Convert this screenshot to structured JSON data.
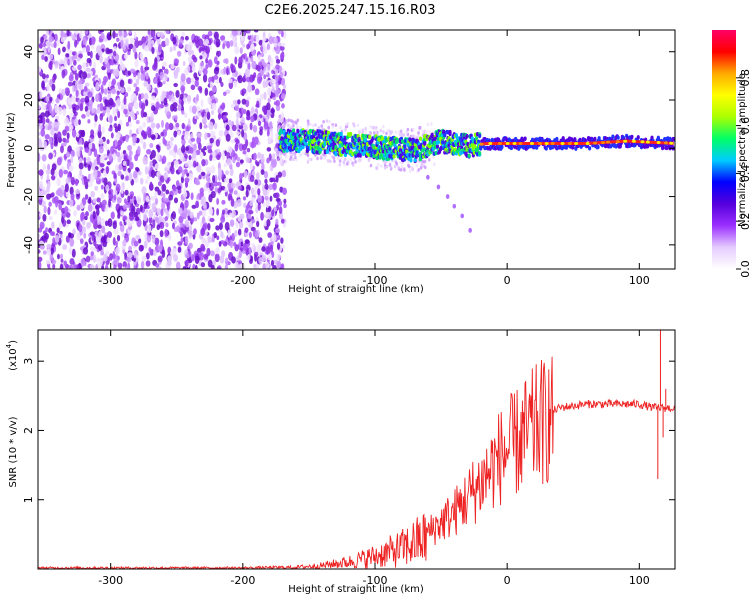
{
  "title": "C2E6.2025.247.15.16.R03",
  "chart_data": [
    {
      "type": "heatmap",
      "name": "spectrogram",
      "xlabel": "Height of straight line (km)",
      "ylabel": "Frequency (Hz)",
      "xlim": [
        -355,
        127
      ],
      "ylim": [
        -50,
        49
      ],
      "xticks": [
        -300,
        -200,
        -100,
        0,
        100
      ],
      "xtick_labels": [
        "-300",
        "-200",
        "-100",
        "0",
        "100"
      ],
      "yticks": [
        -40,
        -20,
        0,
        20,
        40
      ],
      "ytick_labels": [
        "-40",
        "-20",
        "0",
        "20",
        "40"
      ],
      "noise_region_x": [
        -355,
        -172
      ],
      "signal_band": [
        {
          "x": -170,
          "y": 3
        },
        {
          "x": -150,
          "y": 3
        },
        {
          "x": -130,
          "y": 2
        },
        {
          "x": -110,
          "y": 1
        },
        {
          "x": -90,
          "y": 0
        },
        {
          "x": -70,
          "y": -1
        },
        {
          "x": -50,
          "y": 3
        },
        {
          "x": -30,
          "y": 1
        },
        {
          "x": -15,
          "y": 2
        },
        {
          "x": 0,
          "y": 2
        },
        {
          "x": 30,
          "y": 2
        },
        {
          "x": 60,
          "y": 2
        },
        {
          "x": 90,
          "y": 3
        },
        {
          "x": 127,
          "y": 2
        }
      ],
      "tail_points": [
        {
          "x": -60,
          "y": -12
        },
        {
          "x": -52,
          "y": -16
        },
        {
          "x": -45,
          "y": -20
        },
        {
          "x": -40,
          "y": -24
        },
        {
          "x": -34,
          "y": -28
        },
        {
          "x": -28,
          "y": -34
        }
      ],
      "colorbar": {
        "label": "Normalized spectral amplitude",
        "ticks": [
          0.0,
          0.2,
          0.4,
          0.6,
          0.8
        ],
        "tick_labels": [
          "0.0",
          "0.2",
          "0.4",
          "0.6",
          "0.8"
        ],
        "range": [
          0,
          1
        ],
        "colors": [
          "#ffffff",
          "#e5ccff",
          "#9b30ff",
          "#5500dd",
          "#0000ff",
          "#00ccff",
          "#00ff66",
          "#aaff00",
          "#ffff00",
          "#ffaa00",
          "#ff0000",
          "#ff0066"
        ]
      }
    },
    {
      "type": "line",
      "name": "snr",
      "xlabel": "Height of straight line (km)",
      "ylabel": "SNR (10 * v/v)",
      "scale_label": "(x10",
      "scale_exponent": "4",
      "scale_close": ")",
      "xlim": [
        -355,
        127
      ],
      "ylim": [
        0,
        3.45
      ],
      "xticks": [
        -300,
        -200,
        -100,
        0,
        100
      ],
      "xtick_labels": [
        "-300",
        "-200",
        "-100",
        "0",
        "100"
      ],
      "yticks": [
        1,
        2,
        3
      ],
      "ytick_labels": [
        "1",
        "2",
        "3"
      ],
      "color": "#ee2222",
      "envelope": [
        {
          "x": -355,
          "y": 0.02
        },
        {
          "x": -200,
          "y": 0.02
        },
        {
          "x": -160,
          "y": 0.03
        },
        {
          "x": -140,
          "y": 0.06
        },
        {
          "x": -120,
          "y": 0.12
        },
        {
          "x": -100,
          "y": 0.22
        },
        {
          "x": -80,
          "y": 0.35
        },
        {
          "x": -60,
          "y": 0.55
        },
        {
          "x": -40,
          "y": 0.85
        },
        {
          "x": -20,
          "y": 1.3
        },
        {
          "x": -5,
          "y": 1.7
        },
        {
          "x": 10,
          "y": 1.95
        },
        {
          "x": 25,
          "y": 2.2
        },
        {
          "x": 40,
          "y": 2.33
        },
        {
          "x": 60,
          "y": 2.38
        },
        {
          "x": 80,
          "y": 2.38
        },
        {
          "x": 100,
          "y": 2.38
        },
        {
          "x": 110,
          "y": 2.33
        },
        {
          "x": 127,
          "y": 2.32
        }
      ],
      "spikes": [
        {
          "x": 114,
          "y": 1.3
        },
        {
          "x": 116,
          "y": 3.45
        },
        {
          "x": 118,
          "y": 1.9
        },
        {
          "x": 120,
          "y": 2.6
        }
      ]
    }
  ]
}
